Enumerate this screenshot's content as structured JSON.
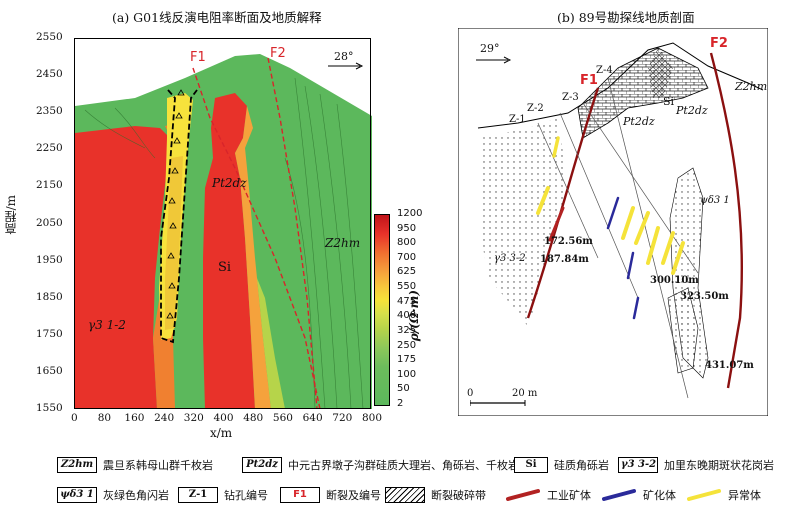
{
  "panel_a": {
    "title": "(a) G01线反演电阻率断面及地质解释",
    "ylabel": "高程/m",
    "xlabel": "x/m",
    "yticks": [
      "2550",
      "2450",
      "2350",
      "2250",
      "2150",
      "2050",
      "1950",
      "1850",
      "1750",
      "1650",
      "1550"
    ],
    "xticks": [
      "0",
      "80",
      "160",
      "240",
      "320",
      "400",
      "480",
      "560",
      "640",
      "720",
      "800"
    ],
    "fault1": "F1",
    "fault2": "F2",
    "angle": "28°",
    "rock_pt": "Pt2dz",
    "rock_si": "Si",
    "rock_z": "Z2hm",
    "rock_g": "γ3 1-2"
  },
  "colorbar": {
    "label": "ρ/(Ω·m)",
    "ticks": [
      "1200",
      "950",
      "800",
      "700",
      "625",
      "550",
      "475",
      "400",
      "325",
      "250",
      "175",
      "100",
      "50",
      "2"
    ]
  },
  "panel_b": {
    "title": "(b) 89号勘探线地质剖面",
    "angle": "29°",
    "fault1": "F1",
    "fault2": "F2",
    "holes": [
      "Z-4",
      "Z-3",
      "Z-2",
      "Z-1"
    ],
    "rock_pt1": "Pt2dz",
    "rock_pt2": "Pt2dz",
    "rock_si": "Si",
    "rock_z": "Z2hm",
    "rock_g": "γ3 3-2",
    "rock_psi": "ψδ3 1",
    "depths": [
      "172.56m",
      "187.84m",
      "300.10m",
      "323.50m",
      "431.07m"
    ],
    "scale_0": "0",
    "scale_20": "20 m"
  },
  "legend": {
    "z2hm_sym": "Z2hm",
    "z2hm": "震旦系韩母山群千枚岩",
    "pt_sym": "Pt2dz",
    "pt": "中元古界墩子沟群硅质大理岩、角砾岩、千枚岩",
    "si_sym": "Si",
    "si": "硅质角砾岩",
    "g_sym": "γ3 3-2",
    "g": "加里东晚期斑状花岗岩",
    "psi_sym": "ψδ3 1",
    "psi": "灰绿色角闪岩",
    "hole_sym": "Z-1",
    "hole": "钻孔编号",
    "fault_sym": "F1",
    "fault": "断裂及编号",
    "break": "断裂破碎带",
    "ore": "工业矿体",
    "min": "矿化体",
    "anom": "异常体"
  },
  "colors": {
    "red": "#d8252a",
    "green": "#5cb85c",
    "ore": "#b22222",
    "min": "#2a2a9a",
    "anom": "#f5e33a"
  }
}
